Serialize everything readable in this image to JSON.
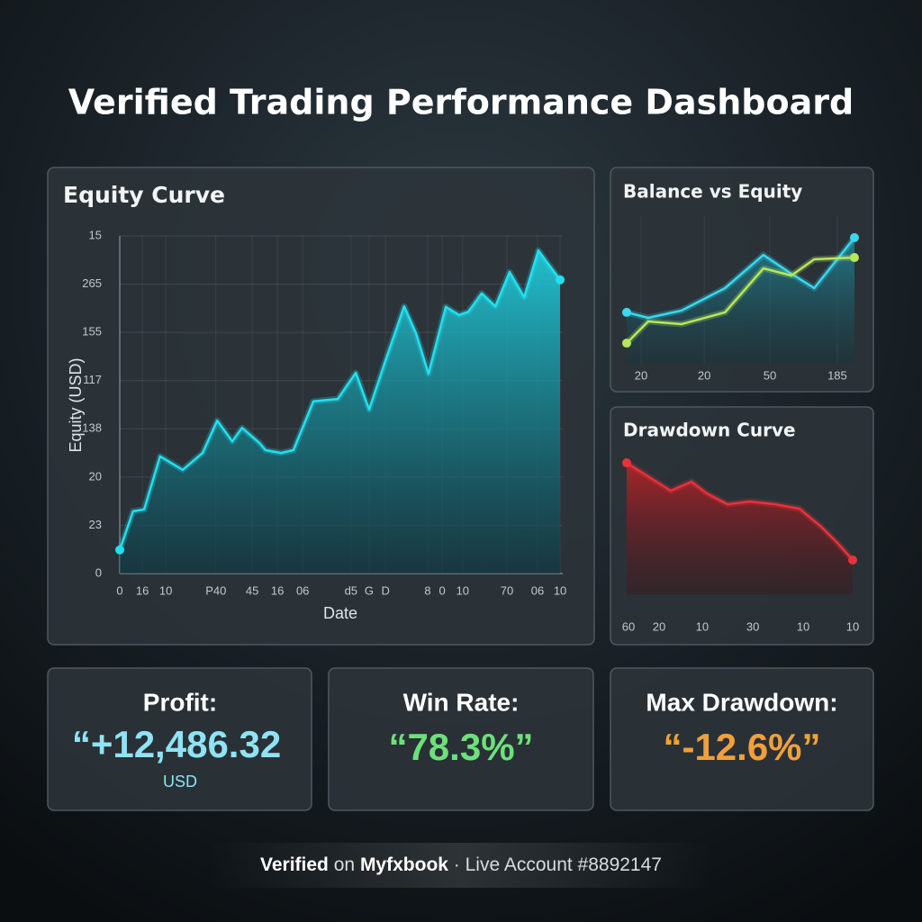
{
  "title": "Verified Trading Performance Dashboard",
  "chart_data": [
    {
      "type": "area",
      "title": "Equity Curve",
      "ylabel": "Equity (USD)",
      "xlabel": "Date",
      "color": "#22e0f0",
      "grid": true,
      "x": [
        0,
        3.0,
        5.5,
        9.1,
        14.2,
        18.7,
        22.0,
        25.4,
        27.6,
        31.5,
        32.9,
        36.4,
        39.2,
        43.7,
        49.2,
        53.3,
        56.3,
        60.0,
        64.2,
        66.9,
        69.7,
        73.6,
        76.6,
        78.7,
        81.7,
        84.8,
        88.0,
        91.3,
        94.5,
        99.4
      ],
      "values": [
        0.49,
        1.29,
        1.33,
        2.43,
        2.15,
        2.5,
        3.17,
        2.74,
        3.02,
        2.71,
        2.56,
        2.5,
        2.56,
        3.57,
        3.62,
        4.16,
        3.4,
        4.42,
        5.54,
        4.98,
        4.14,
        5.53,
        5.36,
        5.43,
        5.81,
        5.54,
        6.25,
        5.73,
        6.7,
        6.09
      ],
      "xlim": [
        0,
        100
      ],
      "ylim": [
        0,
        7
      ],
      "yticks": [
        {
          "value": 0,
          "label": "0"
        },
        {
          "value": 1,
          "label": "23"
        },
        {
          "value": 2,
          "label": "20"
        },
        {
          "value": 3,
          "label": "138"
        },
        {
          "value": 4,
          "label": "117"
        },
        {
          "value": 5,
          "label": "155"
        },
        {
          "value": 6,
          "label": "265"
        },
        {
          "value": 7,
          "label": "15"
        }
      ],
      "xticks": [
        {
          "value": 0,
          "label": "0"
        },
        {
          "value": 5.1,
          "label": "16"
        },
        {
          "value": 10.4,
          "label": "10"
        },
        {
          "value": 21.7,
          "label": "P40"
        },
        {
          "value": 29.9,
          "label": "45"
        },
        {
          "value": 35.6,
          "label": "16"
        },
        {
          "value": 41.3,
          "label": "06"
        },
        {
          "value": 52.2,
          "label": "d5"
        },
        {
          "value": 56.3,
          "label": "G"
        },
        {
          "value": 60.0,
          "label": "D"
        },
        {
          "value": 69.5,
          "label": "8"
        },
        {
          "value": 72.8,
          "label": "0"
        },
        {
          "value": 77.4,
          "label": "10"
        },
        {
          "value": 87.4,
          "label": "70"
        },
        {
          "value": 94.3,
          "label": "06"
        },
        {
          "value": 99.4,
          "label": "10"
        }
      ]
    },
    {
      "type": "line",
      "title": "Balance vs Equity",
      "grid": true,
      "x": [
        0,
        9.4,
        24.0,
        43.0,
        59.8,
        72.0,
        82.0,
        99.6
      ],
      "series": [
        {
          "color": "#38d8f0",
          "values": [
            35.2,
            31.5,
            36.4,
            51.5,
            73.9,
            61.2,
            51.5,
            85.5
          ]
        },
        {
          "color": "#b6e85a",
          "values": [
            14.5,
            29.1,
            27.3,
            35.2,
            64.8,
            60.0,
            70.9,
            72.1
          ]
        }
      ],
      "xlim": [
        0,
        100
      ],
      "ylim": [
        0,
        100
      ],
      "xticks": [
        {
          "value": 6.3,
          "label": "20"
        },
        {
          "value": 33.9,
          "label": "20"
        },
        {
          "value": 62.6,
          "label": "50"
        },
        {
          "value": 92.1,
          "label": "185"
        }
      ]
    },
    {
      "type": "area",
      "title": "Drawdown Curve",
      "color": "#e8323a",
      "grid": false,
      "x": [
        0,
        7.5,
        19.4,
        28.6,
        35.3,
        44.4,
        54.4,
        65.1,
        76.2,
        85.7,
        92.9,
        99.6
      ],
      "values": [
        97.3,
        89.3,
        76.7,
        83.3,
        74.7,
        66.7,
        68.7,
        66.7,
        63.3,
        50,
        38,
        25.3
      ],
      "xlim": [
        0,
        100
      ],
      "ylim": [
        0,
        100
      ],
      "xticks": [
        {
          "value": 0.8,
          "label": "60"
        },
        {
          "value": 14.3,
          "label": "20"
        },
        {
          "value": 33.3,
          "label": "10"
        },
        {
          "value": 55.6,
          "label": "30"
        },
        {
          "value": 77.8,
          "label": "10"
        },
        {
          "value": 99.6,
          "label": "10"
        }
      ]
    }
  ],
  "stats": [
    {
      "label": "Profit:",
      "value": "“+12,486.32",
      "unit": "USD"
    },
    {
      "label": "Win Rate:",
      "value": "“78.3%”"
    },
    {
      "label": "Max Drawdown:",
      "value": "“-12.6%”"
    }
  ],
  "footer": {
    "verified": "Verified",
    "on": "on",
    "brand": "Myfxbook",
    "account": "· Live Account #8892147"
  }
}
